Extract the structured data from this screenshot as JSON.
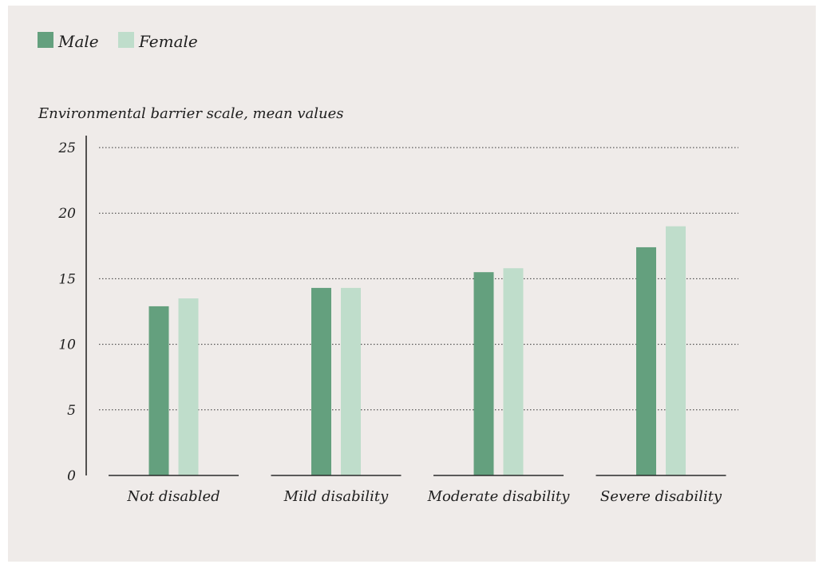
{
  "chart_data": {
    "type": "bar",
    "ylabel": "Environmental barrier scale, mean values",
    "xlabel": "",
    "categories": [
      "Not disabled",
      "Mild disability",
      "Moderate disability",
      "Severe disability"
    ],
    "series": [
      {
        "name": "Male",
        "color": "#64a07e",
        "values": [
          12.9,
          14.3,
          15.5,
          17.4
        ]
      },
      {
        "name": "Female",
        "color": "#bfddcb",
        "values": [
          13.5,
          14.3,
          15.8,
          19.0
        ]
      }
    ],
    "ylim": [
      0,
      25
    ],
    "yticks": [
      0,
      5,
      10,
      15,
      20,
      25
    ],
    "grid": true,
    "legend_position": "top-left"
  }
}
